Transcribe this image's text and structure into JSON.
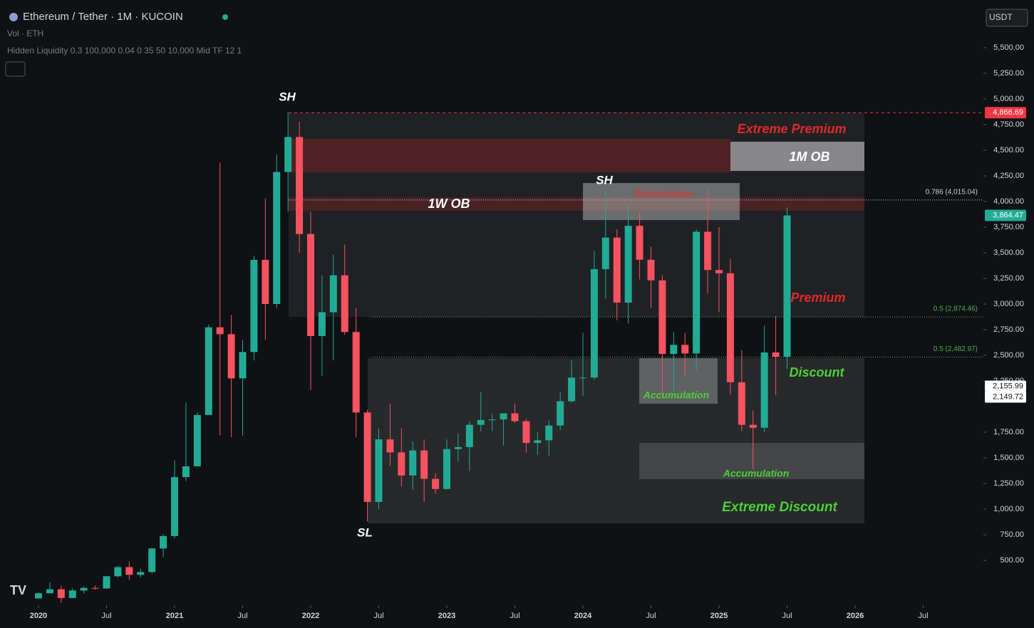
{
  "header": {
    "title": "Ethereum / Tether · 1M · KUCOIN",
    "volume": "Vol · ETH",
    "indicator": "Hidden Liquidity 0.3 100,000 0.04 0 35 50 10,000 Mid TF 12 1",
    "currency": "USDT"
  },
  "chart_data": {
    "type": "candlestick",
    "x": [
      "2020-01",
      "2020-02",
      "2020-03",
      "2020-04",
      "2020-05",
      "2020-06",
      "2020-07",
      "2020-08",
      "2020-09",
      "2020-10",
      "2020-11",
      "2020-12",
      "2021-01",
      "2021-02",
      "2021-03",
      "2021-04",
      "2021-05",
      "2021-06",
      "2021-07",
      "2021-08",
      "2021-09",
      "2021-10",
      "2021-11",
      "2021-12",
      "2022-01",
      "2022-02",
      "2022-03",
      "2022-04",
      "2022-05",
      "2022-06",
      "2022-07",
      "2022-08",
      "2022-09",
      "2022-10",
      "2022-11",
      "2022-12",
      "2023-01",
      "2023-02",
      "2023-03",
      "2023-04",
      "2023-05",
      "2023-06",
      "2023-07",
      "2023-08",
      "2023-09",
      "2023-10",
      "2023-11",
      "2023-12",
      "2024-01",
      "2024-02",
      "2024-03",
      "2024-04",
      "2024-05",
      "2024-06",
      "2024-07",
      "2024-08",
      "2024-09",
      "2024-10",
      "2024-11",
      "2024-12",
      "2025-01",
      "2025-02",
      "2025-03",
      "2025-04",
      "2025-05",
      "2025-06",
      "2025-07"
    ],
    "open": [
      129,
      179,
      218,
      133,
      206,
      231,
      226,
      345,
      434,
      359,
      386,
      616,
      737,
      1312,
      1417,
      1918,
      2773,
      2706,
      2275,
      2532,
      3431,
      3000,
      4288,
      4629,
      3683,
      2688,
      2920,
      3280,
      2727,
      1942,
      1070,
      1680,
      1553,
      1328,
      1572,
      1295,
      1196,
      1585,
      1605,
      1822,
      1869,
      1874,
      1934,
      1857,
      1645,
      1671,
      1815,
      2052,
      2282,
      2283,
      3340,
      3648,
      3014,
      3763,
      3432,
      3231,
      2513,
      2602,
      2518,
      3705,
      3332,
      3300,
      2237,
      1822,
      1793,
      2528,
      2486
    ],
    "high": [
      184,
      288,
      253,
      228,
      247,
      255,
      348,
      445,
      488,
      420,
      622,
      757,
      1476,
      2040,
      1945,
      2798,
      4380,
      2892,
      2650,
      3470,
      4030,
      4460,
      4868,
      4778,
      3900,
      3280,
      3480,
      3580,
      2960,
      1970,
      1785,
      2030,
      1790,
      1660,
      1680,
      1350,
      1680,
      1740,
      1860,
      2140,
      1930,
      1930,
      2030,
      1880,
      1750,
      1865,
      2140,
      2450,
      2720,
      3520,
      4095,
      3730,
      3975,
      3890,
      3560,
      3280,
      2730,
      2720,
      3730,
      4110,
      3750,
      3440,
      2550,
      1960,
      2790,
      2880,
      3940
    ],
    "low": [
      126,
      178,
      86,
      130,
      176,
      214,
      222,
      335,
      308,
      334,
      373,
      529,
      715,
      1274,
      1429,
      1930,
      1720,
      1700,
      1718,
      2450,
      2650,
      2960,
      3900,
      3500,
      2160,
      2300,
      2450,
      2700,
      1700,
      880,
      1000,
      1420,
      1220,
      1190,
      1070,
      1150,
      1190,
      1460,
      1370,
      1760,
      1760,
      1620,
      1840,
      1550,
      1530,
      1520,
      1770,
      2040,
      2100,
      2260,
      3050,
      2840,
      2810,
      3240,
      2960,
      2110,
      2150,
      2300,
      2360,
      3100,
      2920,
      2120,
      1760,
      1385,
      1750,
      2110,
      2370
    ],
    "close": [
      179,
      218,
      133,
      206,
      231,
      226,
      345,
      434,
      359,
      386,
      616,
      737,
      1312,
      1417,
      1918,
      2773,
      2706,
      2275,
      2532,
      3431,
      3000,
      4288,
      4629,
      3683,
      2688,
      2920,
      3280,
      2727,
      1942,
      1070,
      1680,
      1553,
      1328,
      1572,
      1295,
      1196,
      1585,
      1605,
      1822,
      1869,
      1874,
      1934,
      1857,
      1645,
      1671,
      1815,
      2052,
      2282,
      2283,
      3340,
      3648,
      3014,
      3763,
      3432,
      3231,
      2513,
      2602,
      2518,
      3705,
      3332,
      3300,
      2237,
      1822,
      1793,
      2528,
      2486,
      3864
    ],
    "up_color": "#22ab94",
    "down_color": "#f7525f",
    "ylim": [
      250,
      5750
    ],
    "yticks": [
      {
        "value": 500,
        "label": "500.00"
      },
      {
        "value": 750,
        "label": "750.00"
      },
      {
        "value": 1000,
        "label": "1,000.00"
      },
      {
        "value": 1250,
        "label": "1,250.00"
      },
      {
        "value": 1500,
        "label": "1,500.00"
      },
      {
        "value": 1750,
        "label": "1,750.00"
      },
      {
        "value": 2250,
        "label": "2,250.00"
      },
      {
        "value": 2500,
        "label": "2,500.00"
      },
      {
        "value": 2750,
        "label": "2,750.00"
      },
      {
        "value": 3000,
        "label": "3,000.00"
      },
      {
        "value": 3250,
        "label": "3,250.00"
      },
      {
        "value": 3500,
        "label": "3,500.00"
      },
      {
        "value": 3750,
        "label": "3,750.00"
      },
      {
        "value": 4000,
        "label": "4,000.00"
      },
      {
        "value": 4250,
        "label": "4,250.00"
      },
      {
        "value": 4500,
        "label": "4,500.00"
      },
      {
        "value": 4750,
        "label": "4,750.00"
      },
      {
        "value": 5000,
        "label": "5,000.00"
      },
      {
        "value": 5250,
        "label": "5,250.00"
      },
      {
        "value": 5500,
        "label": "5,500.00"
      }
    ],
    "xticks": [
      {
        "value": "2020-01",
        "label": "2020"
      },
      {
        "value": "2020-07",
        "label": "Jul"
      },
      {
        "value": "2021-01",
        "label": "2021"
      },
      {
        "value": "2021-07",
        "label": "Jul"
      },
      {
        "value": "2022-01",
        "label": "2022"
      },
      {
        "value": "2022-07",
        "label": "Jul"
      },
      {
        "value": "2023-01",
        "label": "2023"
      },
      {
        "value": "2023-07",
        "label": "Jul"
      },
      {
        "value": "2024-01",
        "label": "2024"
      },
      {
        "value": "2024-07",
        "label": "Jul"
      },
      {
        "value": "2025-01",
        "label": "2025"
      },
      {
        "value": "2025-07",
        "label": "Jul"
      },
      {
        "value": "2026-01",
        "label": "2026"
      },
      {
        "value": "2026-07",
        "label": "Jul"
      }
    ],
    "zones": [
      {
        "range": [
          2874,
          4866
        ],
        "color": "rgba(255,255,255,0.07)"
      },
      {
        "range": [
          4285,
          4611
        ],
        "color": "rgba(200,40,40,0.28)"
      },
      {
        "range": [
          4298,
          4583
        ],
        "color": "rgba(220,220,220,0.55)"
      },
      {
        "range": [
          3910,
          4041
        ],
        "color": "rgba(220,40,40,0.22)"
      },
      {
        "range": [
          3819,
          4180
        ],
        "color": "rgba(200,200,200,0.45)"
      },
      {
        "range": [
          861,
          2472
        ],
        "color": "rgba(255,255,255,0.10)"
      },
      {
        "range": [
          2028,
          2472
        ],
        "color": "rgba(200,200,200,0.35)"
      },
      {
        "range": [
          1292,
          1646
        ],
        "color": "rgba(200,200,200,0.18)"
      }
    ],
    "levels": [
      {
        "value": 4015.04,
        "label": "0.786 (4,015.04)",
        "color": "#cccccc"
      },
      {
        "value": 2874.46,
        "label": "0.5 (2,874.46)",
        "color": "#4caf50"
      },
      {
        "value": 2482.97,
        "label": "0.5 (2,482.97)",
        "color": "#4caf50"
      }
    ],
    "price_tags": [
      {
        "value": 4866.69,
        "label": "4,866.69",
        "color": "#f23645",
        "text_color": "#ffffff"
      },
      {
        "value": 3864.47,
        "label": "3,864.47",
        "color": "#22ab94",
        "text_color": "#ffffff"
      },
      {
        "value": 2155.99,
        "label": "2,155.99",
        "color": "#ffffff",
        "text_color": "#111111"
      },
      {
        "value": 2149.72,
        "label": "2,149.72",
        "color": "#ffffff",
        "text_color": "#111111"
      }
    ],
    "annotations": [
      "SH",
      "SH",
      "SL",
      "Extreme Premium",
      "1M OB",
      "1W OB",
      "Distrubution",
      "Premium",
      "Discount",
      "Accumulation",
      "Accumulation",
      "Extreme Discount"
    ]
  }
}
